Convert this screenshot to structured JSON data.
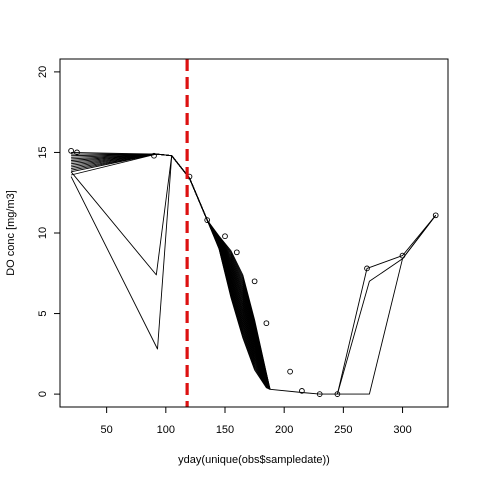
{
  "chart_data": {
    "type": "line",
    "title": "",
    "xlabel": "yday(unique(obs$sampledate))",
    "ylabel": "DO conc [mg/m3]",
    "xlim": [
      10.6,
      338.4
    ],
    "ylim": [
      -0.8,
      20.8
    ],
    "x_ticks": [
      50,
      100,
      150,
      200,
      250,
      300
    ],
    "y_ticks": [
      0,
      5,
      10,
      15,
      20
    ],
    "x_tick_labels": [
      "50",
      "100",
      "150",
      "200",
      "250",
      "300"
    ],
    "y_tick_labels": [
      "0",
      "5",
      "10",
      "15",
      "20"
    ],
    "grid": false,
    "legend": "none",
    "vline": {
      "x": 118,
      "color": "#dd1111",
      "style": "dashed"
    },
    "line_color": "#000000",
    "observations": {
      "x": [
        20,
        25,
        90,
        120,
        135,
        150,
        160,
        175,
        185,
        205,
        215,
        230,
        245,
        270,
        300,
        328
      ],
      "y": [
        15.1,
        15.0,
        14.8,
        13.5,
        10.8,
        9.8,
        8.8,
        7.0,
        4.4,
        1.4,
        0.2,
        0.0,
        0.0,
        7.8,
        8.6,
        11.1
      ]
    },
    "simulations": {
      "spring_start_x": 20,
      "spring_start_y": [
        15.0,
        14.9,
        14.8,
        14.7,
        14.6,
        14.5,
        14.4,
        14.3,
        14.2,
        14.1,
        14.0,
        13.9,
        13.8,
        13.6
      ],
      "winter_anomalies": [
        {
          "x": [
            20,
            92,
            105
          ],
          "y": [
            13.8,
            7.4,
            14.8
          ]
        },
        {
          "x": [
            20,
            93,
            105
          ],
          "y": [
            13.5,
            2.8,
            14.8
          ]
        }
      ],
      "descent_start": [
        [
          92,
          14.9
        ],
        [
          105,
          14.8
        ],
        [
          120,
          13.4
        ],
        [
          135,
          10.8
        ]
      ],
      "descent_fan_x": [
        145,
        155,
        165,
        175,
        185
      ],
      "descent_fast": [
        9.0,
        6.0,
        3.5,
        1.5,
        0.4
      ],
      "descent_slow": [
        9.8,
        8.9,
        7.4,
        4.6,
        1.3
      ],
      "descent_bundle_count": 30,
      "bottom_path": {
        "x": [
          188,
          215,
          230,
          245
        ],
        "y": [
          0.3,
          0.1,
          0.0,
          0.0
        ]
      },
      "recovery_paths": [
        {
          "x": [
            245,
            270,
            300,
            328
          ],
          "y": [
            0.0,
            7.8,
            8.6,
            11.1
          ]
        },
        {
          "x": [
            245,
            272,
            300,
            328
          ],
          "y": [
            0.0,
            7.0,
            8.4,
            11.1
          ]
        },
        {
          "x": [
            245,
            272,
            300,
            328
          ],
          "y": [
            0.0,
            0.0,
            8.4,
            11.1
          ]
        }
      ]
    }
  }
}
